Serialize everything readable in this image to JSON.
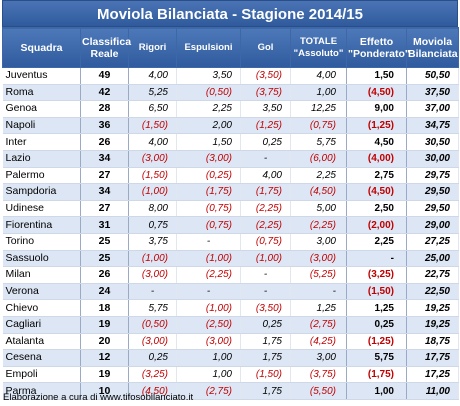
{
  "title": "Moviola Bilanciata - Stagione 2014/15",
  "headers": {
    "squadra": "Squadra",
    "classifica": "Classifica Reale",
    "rigori": "Rigori",
    "espulsioni": "Espulsioni",
    "gol": "Gol",
    "totale": "TOTALE \"Assoluto\"",
    "effetto": "Effetto \"Ponderato\"",
    "moviola": "Moviola Bilanciata"
  },
  "rows": [
    {
      "team": "Juventus",
      "pts": "49",
      "rigori": "4,00",
      "espulsioni": "3,50",
      "gol": "(3,50)",
      "totale": "4,00",
      "effetto": "1,50",
      "mb": "50,50"
    },
    {
      "team": "Roma",
      "pts": "42",
      "rigori": "5,25",
      "espulsioni": "(0,50)",
      "gol": "(3,75)",
      "totale": "1,00",
      "effetto": "(4,50)",
      "mb": "37,50"
    },
    {
      "team": "Genoa",
      "pts": "28",
      "rigori": "6,50",
      "espulsioni": "2,25",
      "gol": "3,50",
      "totale": "12,25",
      "effetto": "9,00",
      "mb": "37,00"
    },
    {
      "team": "Napoli",
      "pts": "36",
      "rigori": "(1,50)",
      "espulsioni": "2,00",
      "gol": "(1,25)",
      "totale": "(0,75)",
      "effetto": "(1,25)",
      "mb": "34,75"
    },
    {
      "team": "Inter",
      "pts": "26",
      "rigori": "4,00",
      "espulsioni": "1,50",
      "gol": "0,25",
      "totale": "5,75",
      "effetto": "4,50",
      "mb": "30,50"
    },
    {
      "team": "Lazio",
      "pts": "34",
      "rigori": "(3,00)",
      "espulsioni": "(3,00)",
      "gol": "-",
      "totale": "(6,00)",
      "effetto": "(4,00)",
      "mb": "30,00"
    },
    {
      "team": "Palermo",
      "pts": "27",
      "rigori": "(1,50)",
      "espulsioni": "(0,25)",
      "gol": "4,00",
      "totale": "2,25",
      "effetto": "2,75",
      "mb": "29,75"
    },
    {
      "team": "Sampdoria",
      "pts": "34",
      "rigori": "(1,00)",
      "espulsioni": "(1,75)",
      "gol": "(1,75)",
      "totale": "(4,50)",
      "effetto": "(4,50)",
      "mb": "29,50"
    },
    {
      "team": "Udinese",
      "pts": "27",
      "rigori": "8,00",
      "espulsioni": "(0,75)",
      "gol": "(2,25)",
      "totale": "5,00",
      "effetto": "2,50",
      "mb": "29,50"
    },
    {
      "team": "Fiorentina",
      "pts": "31",
      "rigori": "0,75",
      "espulsioni": "(0,75)",
      "gol": "(2,25)",
      "totale": "(2,25)",
      "effetto": "(2,00)",
      "mb": "29,00"
    },
    {
      "team": "Torino",
      "pts": "25",
      "rigori": "3,75",
      "espulsioni": "-",
      "gol": "(0,75)",
      "totale": "3,00",
      "effetto": "2,25",
      "mb": "27,25"
    },
    {
      "team": "Sassuolo",
      "pts": "25",
      "rigori": "(1,00)",
      "espulsioni": "(1,00)",
      "gol": "(1,00)",
      "totale": "(3,00)",
      "effetto": "-",
      "mb": "25,00"
    },
    {
      "team": "Milan",
      "pts": "26",
      "rigori": "(3,00)",
      "espulsioni": "(2,25)",
      "gol": "-",
      "totale": "(5,25)",
      "effetto": "(3,25)",
      "mb": "22,75"
    },
    {
      "team": "Verona",
      "pts": "24",
      "rigori": "-",
      "espulsioni": "-",
      "gol": "-",
      "totale": "-",
      "effetto": "(1,50)",
      "mb": "22,50"
    },
    {
      "team": "Chievo",
      "pts": "18",
      "rigori": "5,75",
      "espulsioni": "(1,00)",
      "gol": "(3,50)",
      "totale": "1,25",
      "effetto": "1,25",
      "mb": "19,25"
    },
    {
      "team": "Cagliari",
      "pts": "19",
      "rigori": "(0,50)",
      "espulsioni": "(2,50)",
      "gol": "0,25",
      "totale": "(2,75)",
      "effetto": "0,25",
      "mb": "19,25"
    },
    {
      "team": "Atalanta",
      "pts": "20",
      "rigori": "(3,00)",
      "espulsioni": "(3,00)",
      "gol": "1,75",
      "totale": "(4,25)",
      "effetto": "(1,25)",
      "mb": "18,75"
    },
    {
      "team": "Cesena",
      "pts": "12",
      "rigori": "0,25",
      "espulsioni": "1,00",
      "gol": "1,75",
      "totale": "3,00",
      "effetto": "5,75",
      "mb": "17,75"
    },
    {
      "team": "Empoli",
      "pts": "19",
      "rigori": "(3,25)",
      "espulsioni": "1,00",
      "gol": "(1,50)",
      "totale": "(3,75)",
      "effetto": "(1,75)",
      "mb": "17,25"
    },
    {
      "team": "Parma",
      "pts": "10",
      "rigori": "(4,50)",
      "espulsioni": "(2,75)",
      "gol": "1,75",
      "totale": "(5,50)",
      "effetto": "1,00",
      "mb": "11,00"
    }
  ],
  "footer": "Elaborazione a cura di www.tifosobilanciato.it",
  "colors": {
    "header": "#2f5b9e",
    "row_alt": "#dde6f4",
    "negative": "#c00000"
  }
}
